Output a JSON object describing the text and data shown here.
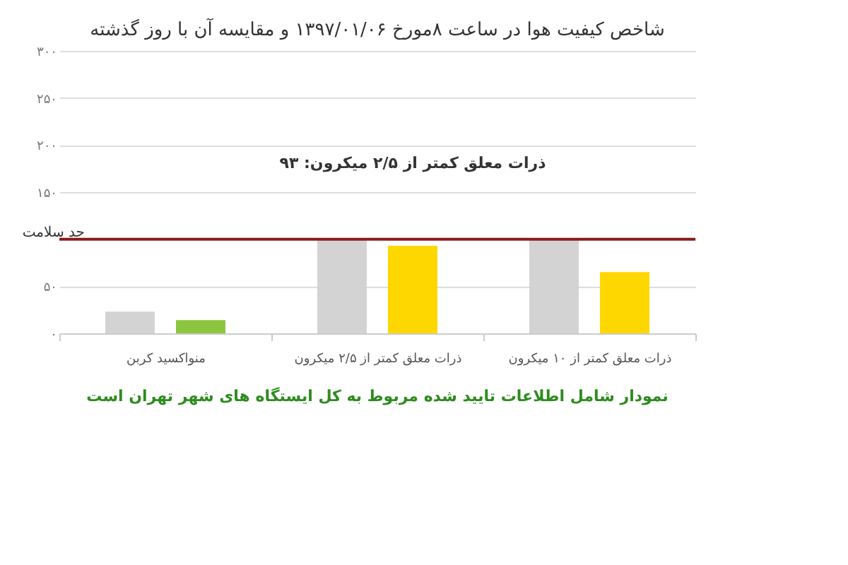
{
  "chart_data": {
    "type": "bar",
    "title": "شاخص کیفیت هوا در ساعت ۸مورخ ۱۳۹۷/۰۱/۰۶ و مقایسه آن با روز گذشته",
    "categories": [
      "منواکسید کربن",
      "ذرات معلق کمتر از ۲/۵ میکرون",
      "ذرات معلق کمتر از ۱۰ میکرون"
    ],
    "series": [
      {
        "color": "#d3d3d3",
        "values": [
          23,
          99,
          99
        ]
      },
      {
        "colors": [
          "#8cc63f",
          "#ffd700",
          "#ffd700"
        ],
        "values": [
          14,
          93,
          65
        ]
      }
    ],
    "ylim": [
      0,
      300
    ],
    "yticks": [
      {
        "value": 0,
        "label": "۰"
      },
      {
        "value": 50,
        "label": "۵۰"
      },
      {
        "value": 100,
        "label": null
      },
      {
        "value": 150,
        "label": "۱۵۰"
      },
      {
        "value": 200,
        "label": "۲۰۰"
      },
      {
        "value": 250,
        "label": "۲۵۰"
      },
      {
        "value": 300,
        "label": "۳۰۰"
      }
    ],
    "grid": "y",
    "ref_lines": [
      {
        "axis": "y",
        "value": 100,
        "label": "حد سلامت",
        "color": "#8b1a1a"
      }
    ],
    "annotations": [
      "ذرات معلق کمتر از ۲/۵ میکرون: ۹۳",
      "نمودار شامل اطلاعات تایید شده مربوط به کل ایستگاه های شهر تهران است"
    ]
  }
}
